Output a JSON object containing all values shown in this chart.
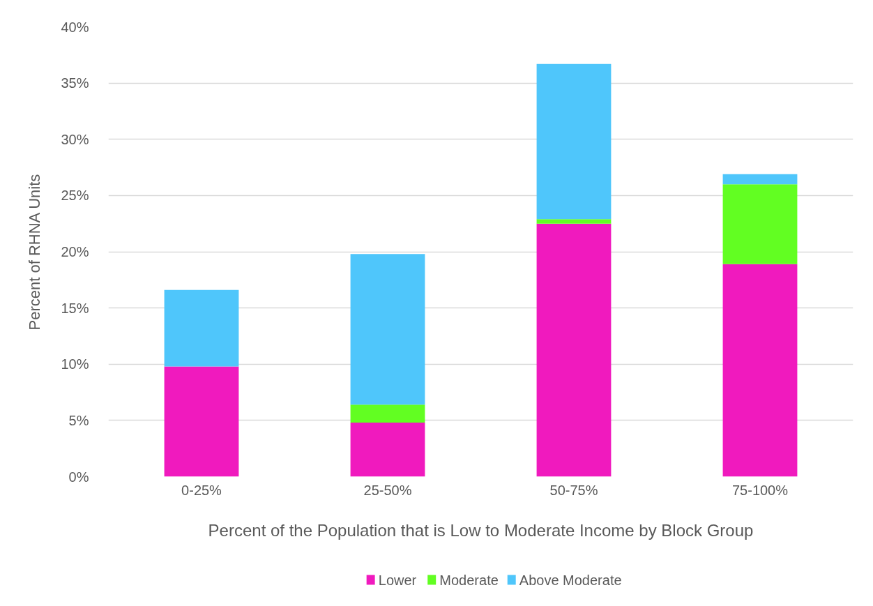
{
  "chart_data": {
    "type": "bar",
    "stacked": true,
    "xlabel": "Percent of the Population that is Low to Moderate Income by Block Group",
    "ylabel": "Percent of RHNA Units",
    "categories": [
      "0-25%",
      "25-50%",
      "50-75%",
      "75-100%"
    ],
    "series": [
      {
        "name": "Lower",
        "color": "#f01abe",
        "values": [
          9.8,
          4.8,
          22.5,
          18.9
        ]
      },
      {
        "name": "Moderate",
        "color": "#62fe22",
        "values": [
          0,
          1.6,
          0.4,
          7.1
        ]
      },
      {
        "name": "Above Moderate",
        "color": "#4fc6fb",
        "values": [
          6.8,
          13.4,
          13.8,
          0.9
        ]
      }
    ],
    "ylim": [
      0,
      40
    ],
    "yticks": [
      {
        "value": 0,
        "label": "0%"
      },
      {
        "value": 5,
        "label": "5%"
      },
      {
        "value": 10,
        "label": "10%"
      },
      {
        "value": 15,
        "label": "15%"
      },
      {
        "value": 20,
        "label": "20%"
      },
      {
        "value": 25,
        "label": "25%"
      },
      {
        "value": 30,
        "label": "30%"
      },
      {
        "value": 35,
        "label": "35%"
      },
      {
        "value": 40,
        "label": "40%"
      }
    ],
    "grid": "y",
    "legend": "bottom"
  }
}
